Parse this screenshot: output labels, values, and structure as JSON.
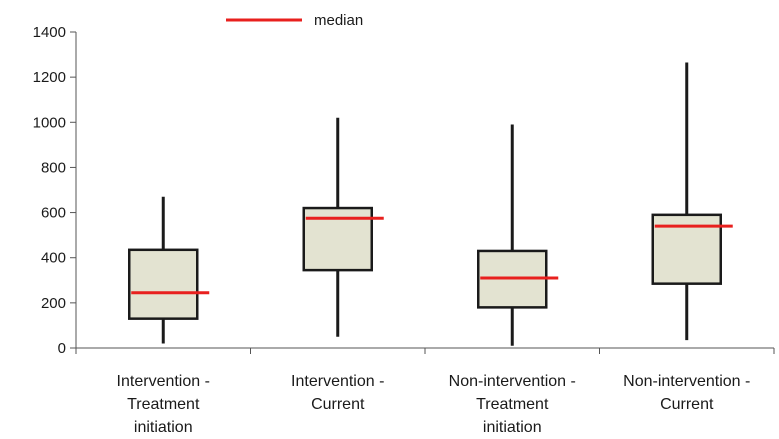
{
  "chart_data": {
    "type": "boxplot",
    "title": "",
    "xlabel": "",
    "ylabel": "",
    "ylim": [
      0,
      1400
    ],
    "yticks": [
      0,
      200,
      400,
      600,
      800,
      1000,
      1200,
      1400
    ],
    "grid": false,
    "legend": {
      "position": "top-center",
      "entries": [
        {
          "label": "median",
          "color": "#e8201e"
        }
      ]
    },
    "categories": [
      [
        "Intervention -",
        "Treatment",
        "initiation"
      ],
      [
        "Intervention -",
        "Current"
      ],
      [
        "Non-intervention -",
        "Treatment",
        "initiation"
      ],
      [
        "Non-intervention -",
        "Current"
      ]
    ],
    "boxes": [
      {
        "min": 20,
        "q1": 130,
        "median": 245,
        "q3": 435,
        "max": 670
      },
      {
        "min": 50,
        "q1": 345,
        "median": 575,
        "q3": 620,
        "max": 1020
      },
      {
        "min": 10,
        "q1": 180,
        "median": 310,
        "q3": 430,
        "max": 990
      },
      {
        "min": 35,
        "q1": 285,
        "median": 540,
        "q3": 590,
        "max": 1265
      }
    ],
    "colors": {
      "box_fill": "#e3e3d1",
      "box_stroke": "#1a1a1a",
      "median": "#e8201e",
      "axis": "#555555"
    }
  }
}
